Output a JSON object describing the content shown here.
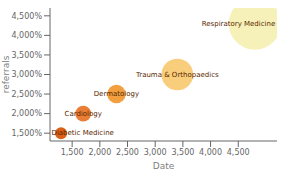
{
  "chart_data": {
    "type": "bubble",
    "xlabel": "Date",
    "ylabel": "referrals",
    "labels": [
      "Diabetic Medicine",
      "Cardiology",
      "Dermatology",
      "Trauma & Orthopaedics",
      "Respiratory Medicine"
    ],
    "x": [
      1300,
      1700,
      2300,
      3400,
      4800
    ],
    "values": [
      1500,
      2000,
      2500,
      3000,
      4300
    ],
    "sizes": [
      200,
      350,
      480,
      1400,
      3800
    ],
    "colors": [
      "#d94f00",
      "#e87020",
      "#f0952a",
      "#f7c96e",
      "#f5f0b0"
    ],
    "xlim": [
      1100,
      5200
    ],
    "ylim": [
      1300,
      4700
    ],
    "xticks": [
      {
        "value": 1500,
        "label": "1,500"
      },
      {
        "value": 2000,
        "label": "2,000"
      },
      {
        "value": 2500,
        "label": "2,500"
      },
      {
        "value": 3000,
        "label": "3,000"
      },
      {
        "value": 3500,
        "label": "3,500"
      },
      {
        "value": 4000,
        "label": "4,000"
      },
      {
        "value": 4500,
        "label": "4,500"
      }
    ],
    "yticks": [
      {
        "value": 1500,
        "label": "1,500%"
      },
      {
        "value": 2000,
        "label": "2,000%"
      },
      {
        "value": 2500,
        "label": "2,500%"
      },
      {
        "value": 3000,
        "label": "3,000%"
      },
      {
        "value": 3500,
        "label": "3,500%"
      },
      {
        "value": 4000,
        "label": "4,000%"
      },
      {
        "value": 4500,
        "label": "4,500%"
      }
    ]
  }
}
